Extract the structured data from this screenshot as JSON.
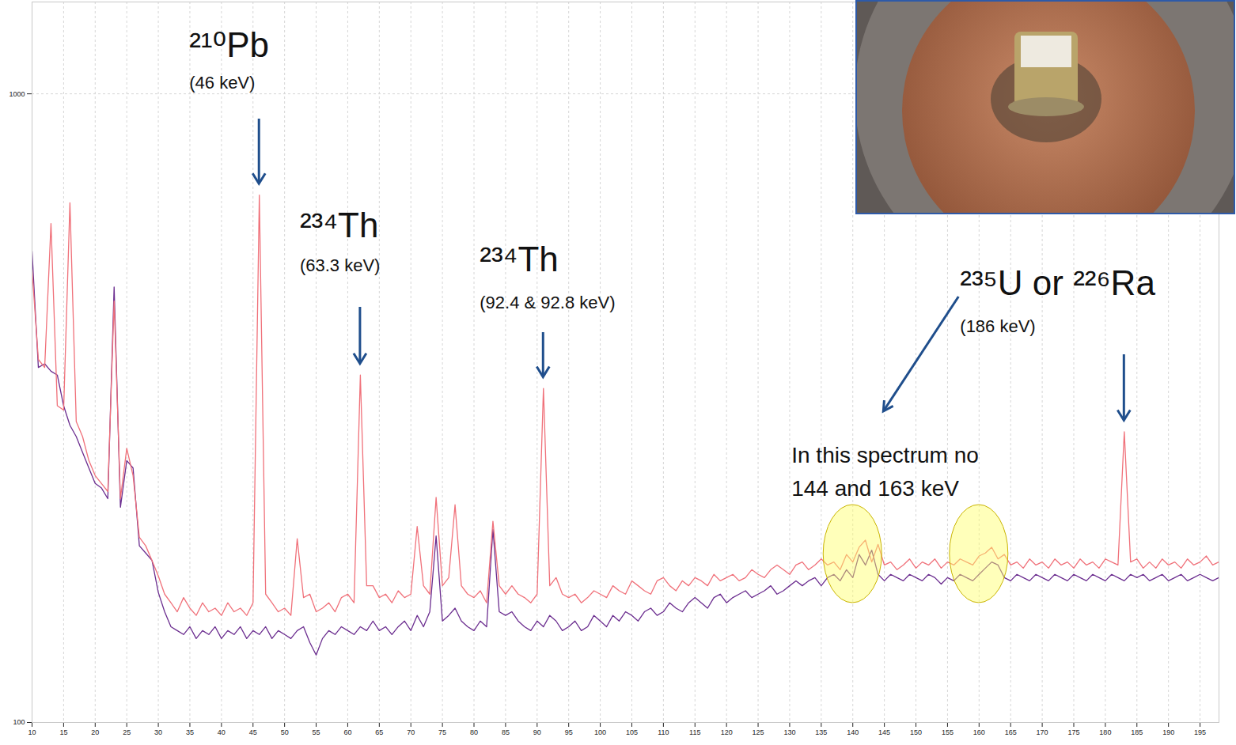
{
  "chart_data": {
    "type": "line",
    "log": "y",
    "grid": true,
    "xlim": [
      10,
      198
    ],
    "ylim": [
      100,
      1400
    ],
    "xticks": [
      10,
      15,
      20,
      25,
      30,
      35,
      40,
      45,
      50,
      55,
      60,
      65,
      70,
      75,
      80,
      85,
      90,
      95,
      100,
      105,
      110,
      115,
      120,
      125,
      130,
      135,
      140,
      145,
      150,
      155,
      160,
      165,
      170,
      175,
      180,
      185,
      190,
      195
    ],
    "yticks": [
      100,
      1000
    ],
    "x": [
      10,
      11,
      12,
      13,
      14,
      15,
      16,
      17,
      18,
      19,
      20,
      21,
      22,
      23,
      24,
      25,
      26,
      27,
      28,
      29,
      30,
      31,
      32,
      33,
      34,
      35,
      36,
      37,
      38,
      39,
      40,
      41,
      42,
      43,
      44,
      45,
      46,
      47,
      48,
      49,
      50,
      51,
      52,
      53,
      54,
      55,
      56,
      57,
      58,
      59,
      60,
      61,
      62,
      63,
      64,
      65,
      66,
      67,
      68,
      69,
      70,
      71,
      72,
      73,
      74,
      75,
      76,
      77,
      78,
      79,
      80,
      81,
      82,
      83,
      84,
      85,
      86,
      87,
      88,
      89,
      90,
      91,
      92,
      93,
      94,
      95,
      96,
      97,
      98,
      99,
      100,
      101,
      102,
      103,
      104,
      105,
      106,
      107,
      108,
      109,
      110,
      111,
      112,
      113,
      114,
      115,
      116,
      117,
      118,
      119,
      120,
      121,
      122,
      123,
      124,
      125,
      126,
      127,
      128,
      129,
      130,
      131,
      132,
      133,
      134,
      135,
      136,
      137,
      138,
      139,
      140,
      141,
      142,
      143,
      144,
      145,
      146,
      147,
      148,
      149,
      150,
      151,
      152,
      153,
      154,
      155,
      156,
      157,
      158,
      159,
      160,
      161,
      162,
      163,
      164,
      165,
      166,
      167,
      168,
      169,
      170,
      171,
      172,
      173,
      174,
      175,
      176,
      177,
      178,
      179,
      180,
      181,
      182,
      183,
      184,
      185,
      186,
      187,
      188,
      189,
      190,
      191,
      192,
      193,
      194,
      195,
      196,
      197,
      198
    ],
    "series": [
      {
        "color": "#f0717a",
        "values": [
          525,
          378,
          367,
          622,
          319,
          314,
          671,
          301,
          285,
          261,
          247,
          240,
          233,
          468,
          227,
          273,
          247,
          197,
          191,
          181,
          171,
          160,
          155,
          150,
          158,
          152,
          148,
          155,
          150,
          152,
          148,
          155,
          150,
          152,
          148,
          155,
          690,
          160,
          155,
          150,
          152,
          148,
          196,
          158,
          160,
          150,
          152,
          155,
          150,
          158,
          160,
          155,
          357,
          165,
          165,
          158,
          160,
          155,
          162,
          158,
          160,
          205,
          165,
          160,
          228,
          165,
          170,
          222,
          165,
          160,
          158,
          162,
          155,
          209,
          165,
          160,
          165,
          160,
          158,
          155,
          160,
          340,
          165,
          170,
          160,
          158,
          160,
          155,
          158,
          162,
          160,
          158,
          165,
          162,
          160,
          168,
          165,
          162,
          160,
          168,
          170,
          165,
          162,
          168,
          165,
          170,
          168,
          165,
          172,
          168,
          170,
          172,
          168,
          170,
          175,
          172,
          170,
          175,
          178,
          175,
          172,
          178,
          180,
          175,
          178,
          182,
          178,
          180,
          175,
          185,
          180,
          190,
          195,
          180,
          192,
          178,
          180,
          175,
          178,
          182,
          176,
          180,
          178,
          182,
          176,
          180,
          178,
          182,
          180,
          178,
          184,
          186,
          190,
          182,
          185,
          178,
          180,
          176,
          182,
          178,
          180,
          176,
          182,
          178,
          180,
          176,
          182,
          178,
          180,
          176,
          182,
          180,
          178,
          290,
          180,
          182,
          176,
          180,
          176,
          182,
          178,
          180,
          176,
          182,
          178,
          180,
          184,
          178,
          180
        ]
      },
      {
        "color": "#6b2d8f",
        "values": [
          562,
          367,
          372,
          362,
          357,
          319,
          297,
          285,
          269,
          254,
          240,
          236,
          227,
          493,
          220,
          261,
          254,
          191,
          186,
          181,
          161,
          150,
          142,
          140,
          138,
          142,
          136,
          140,
          138,
          142,
          136,
          140,
          138,
          142,
          136,
          140,
          138,
          142,
          136,
          140,
          138,
          136,
          140,
          142,
          134,
          128,
          136,
          140,
          138,
          142,
          140,
          138,
          142,
          140,
          145,
          140,
          142,
          138,
          142,
          145,
          140,
          148,
          142,
          150,
          198,
          145,
          148,
          152,
          145,
          142,
          140,
          145,
          142,
          203,
          150,
          148,
          150,
          145,
          142,
          140,
          145,
          142,
          148,
          145,
          140,
          142,
          145,
          140,
          142,
          148,
          145,
          142,
          148,
          145,
          150,
          148,
          145,
          150,
          152,
          148,
          150,
          155,
          152,
          150,
          155,
          158,
          155,
          152,
          158,
          160,
          155,
          158,
          160,
          162,
          158,
          160,
          162,
          165,
          160,
          162,
          165,
          168,
          165,
          168,
          170,
          165,
          170,
          172,
          168,
          175,
          170,
          185,
          178,
          188,
          172,
          168,
          172,
          170,
          168,
          172,
          170,
          168,
          172,
          170,
          166,
          170,
          168,
          172,
          170,
          168,
          172,
          176,
          180,
          178,
          170,
          168,
          172,
          170,
          168,
          172,
          170,
          168,
          172,
          170,
          168,
          172,
          170,
          168,
          172,
          170,
          168,
          172,
          170,
          168,
          172,
          170,
          172,
          168,
          170,
          172,
          168,
          170,
          172,
          168,
          170,
          172,
          170,
          168,
          170
        ]
      }
    ],
    "annotations": [
      {
        "label": "²¹⁰Pb",
        "sublabel": "(46 keV)",
        "x": 46
      },
      {
        "label": "²³⁴Th",
        "sublabel": "(63.3 keV)",
        "x": 62
      },
      {
        "label": "²³⁴Th",
        "sublabel": "(92.4 & 92.8 keV)",
        "x": 91
      },
      {
        "label": "²³⁵U or ²²⁶Ra",
        "sublabel": "(186 keV)",
        "x": 183
      }
    ],
    "note": {
      "lines": [
        "In this spectrum no",
        "144 and 163 keV"
      ],
      "highlight_x": [
        140,
        160
      ]
    }
  }
}
